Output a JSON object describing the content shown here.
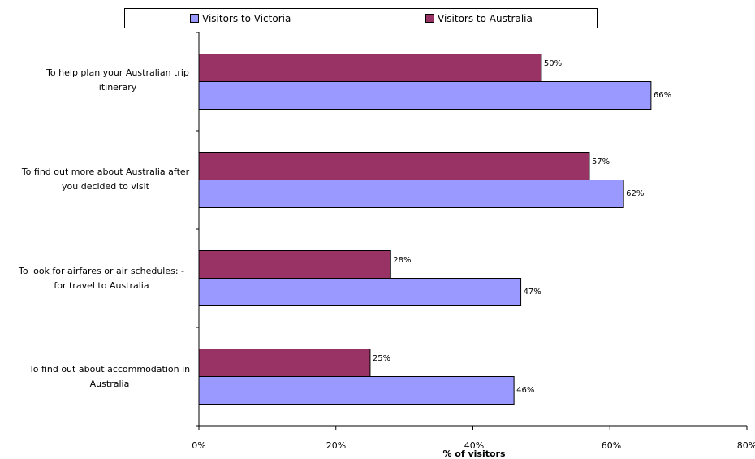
{
  "chart_data": {
    "type": "bar",
    "orientation": "horizontal",
    "categories": [
      "To help plan your Australian trip itinerary",
      "To find out more about Australia after you decided to visit",
      "To look for airfares or air schedules: - for travel to Australia",
      "To find out about accommodation in Australia"
    ],
    "series": [
      {
        "name": "Visitors to Australia",
        "color": "#993366",
        "values": [
          50,
          57,
          28,
          25
        ],
        "labels": [
          "50%",
          "57%",
          "28%",
          "25%"
        ]
      },
      {
        "name": "Visitors to Victoria",
        "color": "#9999ff",
        "values": [
          66,
          62,
          47,
          46
        ],
        "labels": [
          "66%",
          "62%",
          "47%",
          "46%"
        ]
      }
    ],
    "xlabel": "% of visitors",
    "xlim": [
      0,
      80
    ],
    "xticks": [
      "0%",
      "20%",
      "40%",
      "60%",
      "80%"
    ],
    "grid": false,
    "legend_position": "top"
  },
  "legend": [
    {
      "label": "Visitors to Victoria",
      "color": "#9999ff"
    },
    {
      "label": "Visitors to Australia",
      "color": "#993366"
    }
  ]
}
